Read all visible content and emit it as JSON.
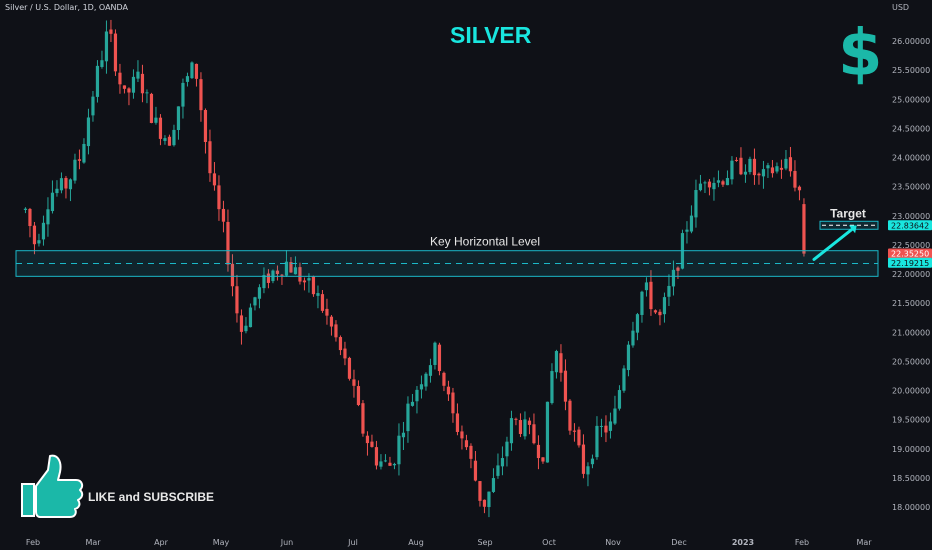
{
  "header": {
    "symbol": "Silver / U.S. Dollar, 1D, OANDA",
    "currency": "USD"
  },
  "title": "SILVER",
  "logo_icon": "dollar-sign-icon",
  "cta": {
    "icon": "thumbs-up-icon",
    "text": "LIKE and SUBSCRIBE"
  },
  "colors": {
    "up": "#26a69a",
    "down": "#ef5350",
    "accent": "#19e6df",
    "zone": "#1bb8c8"
  },
  "chart_data": {
    "type": "candlestick",
    "title": "SILVER",
    "x_labels": [
      "Feb",
      "Mar",
      "Apr",
      "May",
      "Jun",
      "Jul",
      "Aug",
      "Sep",
      "Oct",
      "Nov",
      "Dec",
      "2023",
      "Feb",
      "Mar"
    ],
    "y_ticks": [
      18.0,
      18.5,
      19.0,
      19.5,
      20.0,
      20.5,
      21.0,
      21.5,
      22.0,
      22.5,
      23.0,
      23.5,
      24.0,
      24.5,
      25.0,
      25.5,
      26.0
    ],
    "ylim": [
      17.7,
      26.6
    ],
    "trend": [
      [
        "Jan 26",
        23.1
      ],
      [
        "Feb 2",
        22.5
      ],
      [
        "Feb 9",
        23.4
      ],
      [
        "Feb 16",
        23.5
      ],
      [
        "Feb 23",
        24.0
      ],
      [
        "Mar 2",
        25.3
      ],
      [
        "Mar 8",
        26.2
      ],
      [
        "Mar 15",
        25.0
      ],
      [
        "Mar 22",
        25.4
      ],
      [
        "Mar 29",
        24.6
      ],
      [
        "Apr 5",
        24.3
      ],
      [
        "Apr 12",
        25.2
      ],
      [
        "Apr 18",
        25.6
      ],
      [
        "Apr 26",
        23.6
      ],
      [
        "May 3",
        22.6
      ],
      [
        "May 10",
        21.0
      ],
      [
        "May 17",
        21.6
      ],
      [
        "May 24",
        22.0
      ],
      [
        "Jun 1",
        22.2
      ],
      [
        "Jun 8",
        21.9
      ],
      [
        "Jun 15",
        21.6
      ],
      [
        "Jun 22",
        21.0
      ],
      [
        "Jun 29",
        20.3
      ],
      [
        "Jul 6",
        19.3
      ],
      [
        "Jul 13",
        18.8
      ],
      [
        "Jul 20",
        18.7
      ],
      [
        "Jul 27",
        19.6
      ],
      [
        "Aug 3",
        20.2
      ],
      [
        "Aug 10",
        20.7
      ],
      [
        "Aug 17",
        19.6
      ],
      [
        "Aug 24",
        19.0
      ],
      [
        "Aug 31",
        18.0
      ],
      [
        "Sep 7",
        18.6
      ],
      [
        "Sep 14",
        19.5
      ],
      [
        "Sep 21",
        19.3
      ],
      [
        "Sep 28",
        18.9
      ],
      [
        "Oct 4",
        20.8
      ],
      [
        "Oct 11",
        19.5
      ],
      [
        "Oct 18",
        18.6
      ],
      [
        "Oct 25",
        19.3
      ],
      [
        "Nov 1",
        19.4
      ],
      [
        "Nov 8",
        20.9
      ],
      [
        "Nov 15",
        21.8
      ],
      [
        "Nov 22",
        21.2
      ],
      [
        "Nov 29",
        22.0
      ],
      [
        "Dec 6",
        23.0
      ],
      [
        "Dec 13",
        23.7
      ],
      [
        "Dec 20",
        23.6
      ],
      [
        "Dec 27",
        23.8
      ],
      [
        "Jan 3",
        23.9
      ],
      [
        "Jan 10",
        23.6
      ],
      [
        "Jan 17",
        23.8
      ],
      [
        "Jan 24",
        23.9
      ],
      [
        "Jan 31",
        23.4
      ],
      [
        "Feb 3",
        22.35
      ]
    ],
    "annotations": {
      "key_level": {
        "label": "Key Horizontal Level",
        "upper": 22.4,
        "lower": 21.96
      },
      "target": {
        "label": "Target",
        "value": 22.83642
      }
    },
    "price_tags": [
      {
        "value": "22.83642",
        "price": 22.83642,
        "style": "accent"
      },
      {
        "value": "22.35250",
        "price": 22.3525,
        "style": "down"
      },
      {
        "value": "22.19215",
        "price": 22.19215,
        "style": "accent"
      }
    ]
  }
}
